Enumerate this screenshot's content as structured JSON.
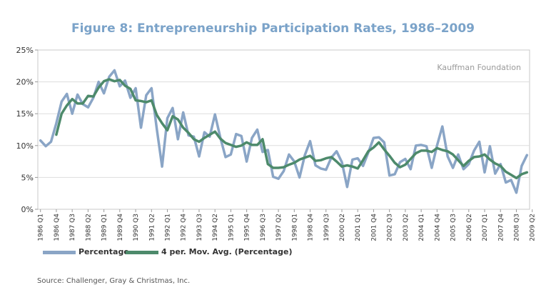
{
  "chart_data": {
    "type": "line",
    "title": "Figure 8: Entrepreneurship Participation Rates, 1986–2009",
    "watermark": "Kauffman Foundation",
    "source": "Source: Challenger, Gray & Christmas, Inc.",
    "ylim": [
      0,
      25
    ],
    "yticks": [
      "0%",
      "5%",
      "10%",
      "15%",
      "20%",
      "25%"
    ],
    "xtick_labels": [
      "1986 Q1",
      "1986 Q4",
      "1987 Q3",
      "1988 Q2",
      "1989 Q1",
      "1989 Q4",
      "1990 Q3",
      "1991 Q2",
      "1992 Q1",
      "1992 Q4",
      "1993 Q3",
      "1994 Q2",
      "1995 Q1",
      "1995 Q4",
      "1996 Q3",
      "1997 Q2",
      "1998 Q1",
      "1998 Q4",
      "1999 Q3",
      "2000 Q2",
      "2001 Q1",
      "2001 Q4",
      "2002 Q3",
      "2003 Q2",
      "2004 Q1",
      "2004 Q4",
      "2005 Q3",
      "2006 Q2",
      "2007 Q1",
      "2007 Q4",
      "2008 Q3",
      "2009 Q2"
    ],
    "grid": true,
    "legend_position": "bottom-left",
    "colors": {
      "Percentage": "#8aa5c6",
      "4 per. Mov. Avg. (Percentage)": "#4d8a6b",
      "title": "#7ba3c9"
    },
    "series": [
      {
        "name": "Percentage",
        "values": [
          10.8,
          9.9,
          10.6,
          13.5,
          16.9,
          18.1,
          15.0,
          18.0,
          16.5,
          16.0,
          17.5,
          20.0,
          18.2,
          20.8,
          21.8,
          19.3,
          20.2,
          17.5,
          19.0,
          12.8,
          17.9,
          19.0,
          12.6,
          6.7,
          14.3,
          15.9,
          11.0,
          15.2,
          11.6,
          11.4,
          8.3,
          12.1,
          11.4,
          14.9,
          11.3,
          8.2,
          8.6,
          11.8,
          11.5,
          7.5,
          11.2,
          12.5,
          9.0,
          9.3,
          5.1,
          4.8,
          6.0,
          8.6,
          7.5,
          5.0,
          8.5,
          10.7,
          6.9,
          6.4,
          6.2,
          8.1,
          9.1,
          7.4,
          3.5,
          7.8,
          8.0,
          6.8,
          8.9,
          11.2,
          11.3,
          10.5,
          5.3,
          5.5,
          7.4,
          7.9,
          6.3,
          10.0,
          10.1,
          9.9,
          6.5,
          10.0,
          13.0,
          8.3,
          6.5,
          8.6,
          6.3,
          7.1,
          9.2,
          10.6,
          5.8,
          9.9,
          5.6,
          7.1,
          4.2,
          4.6,
          2.6,
          6.8,
          8.5
        ]
      },
      {
        "name": "4 per. Mov. Avg. (Percentage)",
        "values": [
          null,
          null,
          null,
          11.7,
          15.0,
          16.3,
          17.3,
          16.6,
          16.6,
          17.8,
          17.7,
          19.1,
          20.1,
          20.4,
          20.1,
          20.3,
          19.4,
          18.9,
          17.1,
          17.0,
          16.8,
          17.1,
          14.8,
          13.5,
          12.4,
          14.6,
          14.1,
          12.8,
          12.0,
          11.0,
          10.6,
          11.2,
          11.7,
          12.2,
          11.1,
          10.4,
          10.1,
          9.8,
          10.0,
          10.5,
          10.1,
          10.1,
          11.0,
          7.1,
          6.5,
          6.5,
          6.6,
          7.0,
          7.3,
          7.8,
          8.1,
          8.4,
          7.6,
          7.7,
          8.0,
          8.2,
          7.5,
          6.7,
          6.9,
          6.7,
          6.4,
          7.7,
          9.1,
          9.7,
          10.5,
          9.4,
          8.4,
          7.3,
          6.6,
          7.0,
          7.9,
          8.8,
          9.2,
          9.2,
          9.0,
          9.6,
          9.3,
          9.1,
          8.6,
          7.7,
          6.8,
          7.6,
          8.2,
          8.3,
          8.6,
          7.8,
          7.2,
          6.8,
          5.9,
          5.4,
          4.9,
          5.5,
          5.8
        ]
      }
    ]
  },
  "legend": [
    {
      "label": "Percentage"
    },
    {
      "label": "4 per. Mov. Avg. (Percentage)"
    }
  ]
}
